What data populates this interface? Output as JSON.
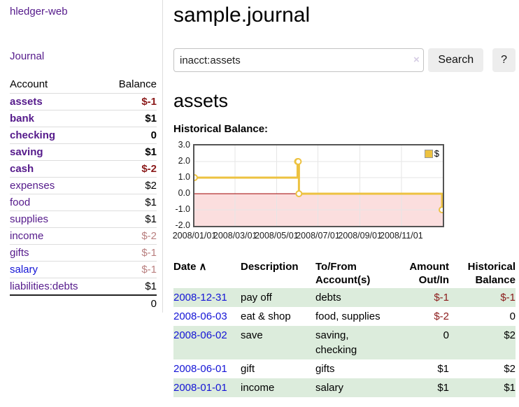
{
  "colors": {
    "purple": "#551a8b",
    "blue": "#1414d6",
    "neg-strong": "#8b1a1a",
    "neg-soft": "#b97f7f",
    "row-green": "#dcecdc",
    "chart-yellow": "#edc240",
    "chart-pink": "#fbdede",
    "zero-red": "#a00000",
    "border-gray": "#dddddd"
  },
  "sidebar": {
    "app_title": "hledger-web",
    "journal_link": "Journal",
    "accounts": {
      "header_account": "Account",
      "header_balance": "Balance",
      "rows": [
        {
          "name": "assets",
          "balance": "$-1",
          "level": 1,
          "bold": true,
          "neg": "strong"
        },
        {
          "name": "bank",
          "balance": "$1",
          "level": 2,
          "bold": true
        },
        {
          "name": "checking",
          "balance": "0",
          "level": 3,
          "bold": true
        },
        {
          "name": "saving",
          "balance": "$1",
          "level": 3,
          "bold": true
        },
        {
          "name": "cash",
          "balance": "$-2",
          "level": 2,
          "bold": true,
          "neg": "strong"
        },
        {
          "name": "expenses",
          "balance": "$2",
          "level": 1
        },
        {
          "name": "food",
          "balance": "$1",
          "level": 2
        },
        {
          "name": "supplies",
          "balance": "$1",
          "level": 2
        },
        {
          "name": "income",
          "balance": "$-2",
          "level": 1,
          "neg": "soft"
        },
        {
          "name": "gifts",
          "balance": "$-1",
          "level": 2,
          "neg": "soft"
        },
        {
          "name": "salary",
          "balance": "$-1",
          "level": 2,
          "neg": "soft",
          "blue": true
        },
        {
          "name": "liabilities:debts",
          "balance": "$1",
          "level": 1
        }
      ],
      "total": "0"
    }
  },
  "main": {
    "title": "sample.journal",
    "search": {
      "value": "inacct:assets",
      "clear_icon": "×",
      "search_button": "Search",
      "help_button": "?"
    },
    "account_heading": "assets",
    "section_heading": "Historical Balance:"
  },
  "chart_data": {
    "type": "line",
    "title": "Historical Balance",
    "legend": {
      "position": "top-right",
      "series_label": "$",
      "swatch_color": "#edc240"
    },
    "series": [
      {
        "name": "$",
        "step": true,
        "points": [
          [
            "2008-01-01",
            1
          ],
          [
            "2008-06-01",
            2
          ],
          [
            "2008-06-02",
            2
          ],
          [
            "2008-06-03",
            0
          ],
          [
            "2008-12-31",
            -1
          ]
        ]
      }
    ],
    "x_range": [
      "2008-01-01",
      "2009-01-01"
    ],
    "x_tick_labels": [
      "2008/01/01",
      "2008/03/01",
      "2008/05/01",
      "2008/07/01",
      "2008/09/01",
      "2008/11/01"
    ],
    "y_ticks": [
      3,
      2,
      1,
      0,
      -1,
      -2
    ],
    "y_tick_labels": [
      "3.0",
      "2.0",
      "1.0",
      "0.0",
      "-1.0",
      "-2.0"
    ],
    "ylim": [
      -2,
      3
    ],
    "grid": true,
    "negative_region": true
  },
  "transactions": {
    "headers": {
      "date": "Date",
      "sort_icon": "∧",
      "description": "Description",
      "tofrom_line1": "To/From",
      "tofrom_line2": "Account(s)",
      "amount_line1": "Amount",
      "amount_line2": "Out/In",
      "balance_line1": "Historical",
      "balance_line2": "Balance"
    },
    "rows": [
      {
        "date": "2008-12-31",
        "description": "pay off",
        "accounts": "debts",
        "amount": "$-1",
        "balance": "$-1",
        "amount_neg": true,
        "balance_neg": true
      },
      {
        "date": "2008-06-03",
        "description": "eat & shop",
        "accounts": "food, supplies",
        "amount": "$-2",
        "balance": "0",
        "amount_neg": true
      },
      {
        "date": "2008-06-02",
        "description": "save",
        "accounts": "saving, checking",
        "amount": "0",
        "balance": "$2"
      },
      {
        "date": "2008-06-01",
        "description": "gift",
        "accounts": "gifts",
        "amount": "$1",
        "balance": "$2"
      },
      {
        "date": "2008-01-01",
        "description": "income",
        "accounts": "salary",
        "amount": "$1",
        "balance": "$1"
      }
    ]
  }
}
